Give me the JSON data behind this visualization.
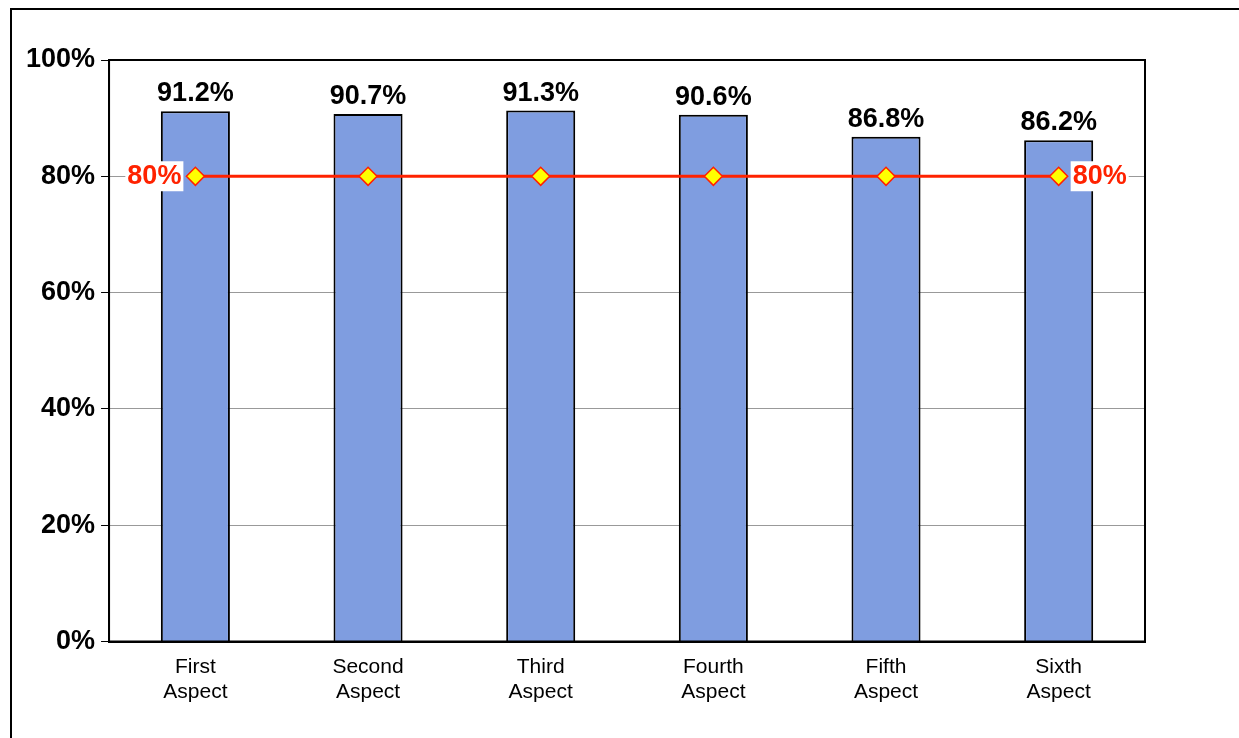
{
  "chart_data": {
    "type": "bar",
    "categories": [
      "First Aspect",
      "Second Aspect",
      "Third Aspect",
      "Fourth Aspect",
      "Fifth Aspect",
      "Sixth Aspect"
    ],
    "series": [
      {
        "color": "#7f9de0",
        "values": [
          91.2,
          90.7,
          91.3,
          90.6,
          86.8,
          86.2
        ],
        "value_labels": [
          "91.2%",
          "90.7%",
          "91.3%",
          "90.6%",
          "86.8%",
          "86.2%"
        ]
      },
      {
        "type": "line",
        "color": "#ff2200",
        "values": [
          80,
          80,
          80,
          80,
          80,
          80
        ],
        "marker": "diamond"
      }
    ],
    "annotations": [
      {
        "text": "80%",
        "x": "First Aspect",
        "y": 80
      },
      {
        "text": "80%",
        "x": "Sixth Aspect",
        "y": 80
      }
    ],
    "ylim": [
      0,
      100
    ],
    "yticks": [
      {
        "value": 0,
        "label": "0%"
      },
      {
        "value": 20,
        "label": "20%"
      },
      {
        "value": 40,
        "label": "40%"
      },
      {
        "value": 60,
        "label": "60%"
      },
      {
        "value": 80,
        "label": "80%"
      },
      {
        "value": 100,
        "label": "100%"
      }
    ],
    "grid": "y",
    "legend": false
  }
}
